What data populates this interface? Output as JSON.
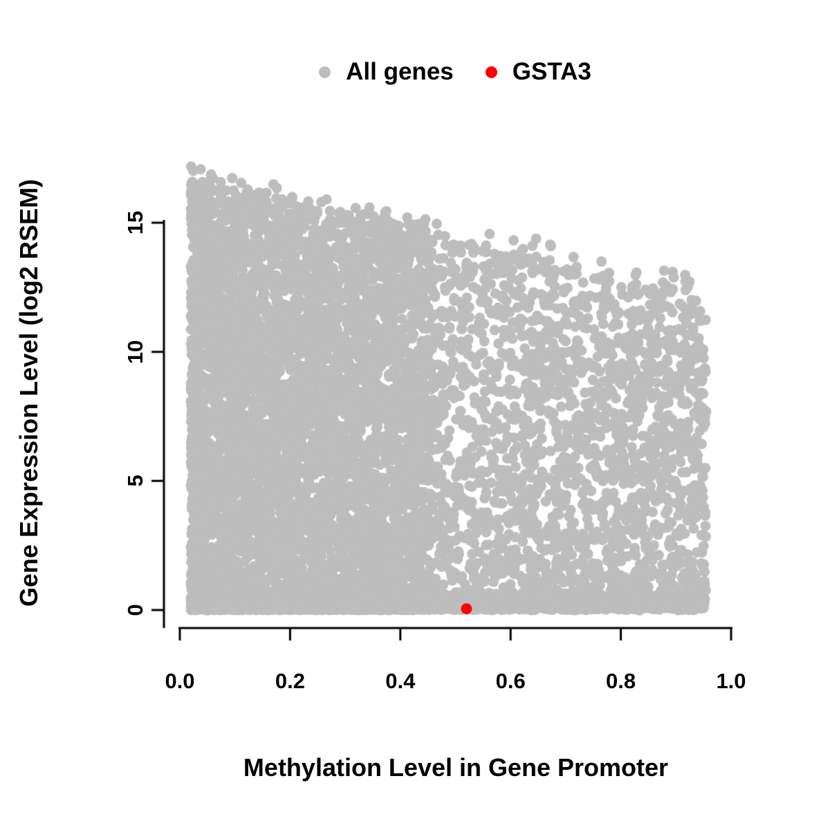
{
  "figure": {
    "background": "#ffffff"
  },
  "chart_data": {
    "type": "scatter",
    "title": "",
    "xlabel": "Methylation Level in Gene Promoter",
    "ylabel": "Gene Expression Level (log2 RSEM)",
    "xlim": [
      0.0,
      1.0
    ],
    "ylim": [
      0,
      16.8
    ],
    "x_ticks": [
      0.0,
      0.2,
      0.4,
      0.6,
      0.8,
      1.0
    ],
    "x_tick_labels": [
      "0.0",
      "0.2",
      "0.4",
      "0.6",
      "0.8",
      "1.0"
    ],
    "y_ticks": [
      0,
      5,
      10,
      15
    ],
    "y_tick_labels": [
      "0",
      "5",
      "10",
      "15"
    ],
    "grid": false,
    "axis_color": "#000000",
    "legend": {
      "position": "top-center",
      "entries": [
        {
          "label": "All genes",
          "color": "#bdbdbd",
          "marker": "circle"
        },
        {
          "label": "GSTA3",
          "color": "#ff0000",
          "marker": "circle"
        }
      ]
    },
    "series": [
      {
        "name": "All genes",
        "color": "#bdbdbd",
        "marker": "circle",
        "marker_radius_px": 7.5,
        "representation": "dense-cloud",
        "cloud": {
          "seed": 20240613,
          "n": 10000,
          "x_min": 0.02,
          "x_max": 0.955,
          "low_x_bias": 0.5,
          "envelope_y_at_x0": 16.6,
          "envelope_y_at_x1": 12.2,
          "envelope_noise_sd": 0.4,
          "bottom_band_fraction": 0.26,
          "bottom_band_sd": 0.35
        }
      },
      {
        "name": "GSTA3",
        "color": "#ff0000",
        "marker": "circle",
        "marker_radius_px": 8,
        "points": [
          [
            0.52,
            0.05
          ]
        ]
      }
    ]
  }
}
